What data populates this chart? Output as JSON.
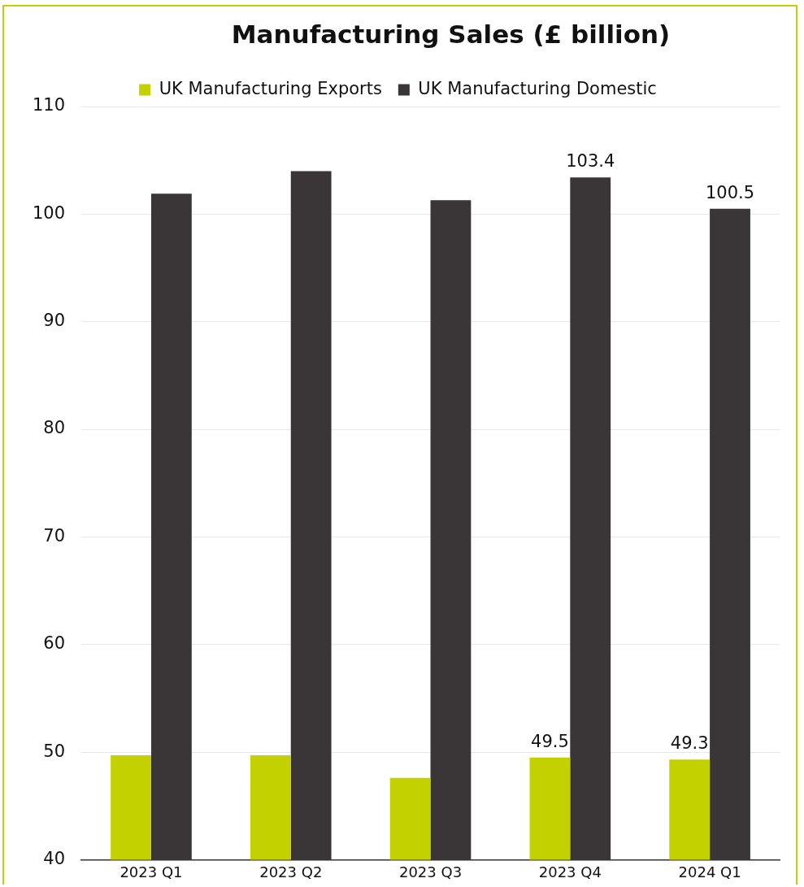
{
  "chart_data": {
    "type": "bar",
    "title": "Manufacturing Sales (£ billion)",
    "categories": [
      "2023 Q1",
      "2023 Q2",
      "2023 Q3",
      "2023 Q4",
      "2024 Q1"
    ],
    "series": [
      {
        "name": "UK Manufacturing Exports",
        "color": "#c3d100",
        "values": [
          49.7,
          49.7,
          47.6,
          49.5,
          49.3
        ],
        "value_labels": [
          null,
          null,
          null,
          "49.5",
          "49.3"
        ]
      },
      {
        "name": "UK Manufacturing Domestic",
        "color": "#3a3536",
        "values": [
          101.9,
          104.0,
          101.3,
          103.4,
          100.5
        ],
        "value_labels": [
          null,
          null,
          null,
          "103.4",
          "100.5"
        ]
      }
    ],
    "ylim": [
      40,
      110
    ],
    "yticks": [
      40,
      50,
      60,
      70,
      80,
      90,
      100,
      110
    ],
    "grid": "y",
    "legend": "top"
  }
}
